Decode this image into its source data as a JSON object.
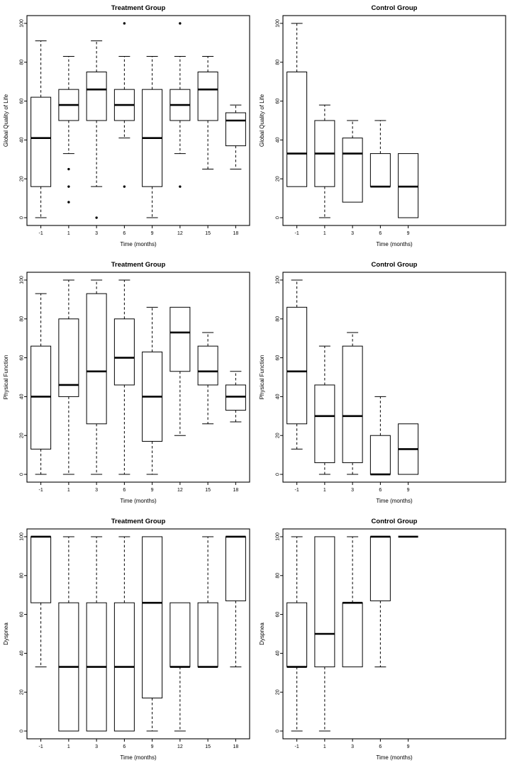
{
  "page": {
    "background": "#ffffff",
    "ink": "#000000"
  },
  "chart_data": [
    {
      "type": "box",
      "title": "Treatment Group",
      "ylabel": "Global Quality of Life",
      "xlabel": "Time (months)",
      "ylim": [
        0,
        100
      ],
      "yticks": [
        0,
        20,
        40,
        60,
        80,
        100
      ],
      "slots": 8,
      "categories": [
        "-1",
        "1",
        "3",
        "6",
        "9",
        "12",
        "15",
        "18"
      ],
      "boxes": [
        {
          "x": "-1",
          "low": 0,
          "q1": 16,
          "med": 41,
          "q3": 62,
          "high": 91,
          "outliers": []
        },
        {
          "x": "1",
          "low": 33,
          "q1": 50,
          "med": 58,
          "q3": 66,
          "high": 83,
          "outliers": [
            25,
            16,
            8
          ]
        },
        {
          "x": "3",
          "low": 16,
          "q1": 50,
          "med": 66,
          "q3": 75,
          "high": 91,
          "outliers": [
            0
          ]
        },
        {
          "x": "6",
          "low": 41,
          "q1": 50,
          "med": 58,
          "q3": 66,
          "high": 83,
          "outliers": [
            100,
            16
          ]
        },
        {
          "x": "9",
          "low": 0,
          "q1": 16,
          "med": 41,
          "q3": 66,
          "high": 83,
          "outliers": []
        },
        {
          "x": "12",
          "low": 33,
          "q1": 50,
          "med": 58,
          "q3": 66,
          "high": 83,
          "outliers": [
            100,
            16
          ]
        },
        {
          "x": "15",
          "low": 25,
          "q1": 50,
          "med": 66,
          "q3": 75,
          "high": 83,
          "outliers": []
        },
        {
          "x": "18",
          "low": 25,
          "q1": 37,
          "med": 50,
          "q3": 54,
          "high": 58,
          "outliers": []
        }
      ]
    },
    {
      "type": "box",
      "title": "Control Group",
      "ylabel": "Global Quality of Life",
      "xlabel": "Time (months)",
      "ylim": [
        0,
        100
      ],
      "yticks": [
        0,
        20,
        40,
        60,
        80,
        100
      ],
      "slots": 8,
      "categories": [
        "-1",
        "1",
        "3",
        "6",
        "9"
      ],
      "boxes": [
        {
          "x": "-1",
          "low": 16,
          "q1": 16,
          "med": 33,
          "q3": 75,
          "high": 100,
          "outliers": []
        },
        {
          "x": "1",
          "low": 0,
          "q1": 16,
          "med": 33,
          "q3": 50,
          "high": 58,
          "outliers": []
        },
        {
          "x": "3",
          "low": 8,
          "q1": 8,
          "med": 33,
          "q3": 41,
          "high": 50,
          "outliers": []
        },
        {
          "x": "6",
          "low": 16,
          "q1": 16,
          "med": 16,
          "q3": 33,
          "high": 50,
          "outliers": []
        },
        {
          "x": "9",
          "low": 0,
          "q1": 0,
          "med": 16,
          "q3": 33,
          "high": 33,
          "outliers": []
        }
      ]
    },
    {
      "type": "box",
      "title": "Treatment Group",
      "ylabel": "Physical Function",
      "xlabel": "Time (months)",
      "ylim": [
        0,
        100
      ],
      "yticks": [
        0,
        20,
        40,
        60,
        80,
        100
      ],
      "slots": 8,
      "categories": [
        "-1",
        "1",
        "3",
        "6",
        "9",
        "12",
        "15",
        "18"
      ],
      "boxes": [
        {
          "x": "-1",
          "low": 0,
          "q1": 13,
          "med": 40,
          "q3": 66,
          "high": 93,
          "outliers": []
        },
        {
          "x": "1",
          "low": 0,
          "q1": 40,
          "med": 46,
          "q3": 80,
          "high": 100,
          "outliers": []
        },
        {
          "x": "3",
          "low": 0,
          "q1": 26,
          "med": 53,
          "q3": 93,
          "high": 100,
          "outliers": []
        },
        {
          "x": "6",
          "low": 0,
          "q1": 46,
          "med": 60,
          "q3": 80,
          "high": 100,
          "outliers": []
        },
        {
          "x": "9",
          "low": 0,
          "q1": 17,
          "med": 40,
          "q3": 63,
          "high": 86,
          "outliers": []
        },
        {
          "x": "12",
          "low": 20,
          "q1": 53,
          "med": 73,
          "q3": 86,
          "high": 86,
          "outliers": []
        },
        {
          "x": "15",
          "low": 26,
          "q1": 46,
          "med": 53,
          "q3": 66,
          "high": 73,
          "outliers": []
        },
        {
          "x": "18",
          "low": 27,
          "q1": 33,
          "med": 40,
          "q3": 46,
          "high": 53,
          "outliers": []
        }
      ]
    },
    {
      "type": "box",
      "title": "Control Group",
      "ylabel": "Physical Function",
      "xlabel": "Time (months)",
      "ylim": [
        0,
        100
      ],
      "yticks": [
        0,
        20,
        40,
        60,
        80,
        100
      ],
      "slots": 8,
      "categories": [
        "-1",
        "1",
        "3",
        "6",
        "9"
      ],
      "boxes": [
        {
          "x": "-1",
          "low": 13,
          "q1": 26,
          "med": 53,
          "q3": 86,
          "high": 100,
          "outliers": []
        },
        {
          "x": "1",
          "low": 0,
          "q1": 6,
          "med": 30,
          "q3": 46,
          "high": 66,
          "outliers": []
        },
        {
          "x": "3",
          "low": 0,
          "q1": 6,
          "med": 30,
          "q3": 66,
          "high": 73,
          "outliers": []
        },
        {
          "x": "6",
          "low": 0,
          "q1": 0,
          "med": 0,
          "q3": 20,
          "high": 40,
          "outliers": []
        },
        {
          "x": "9",
          "low": 0,
          "q1": 0,
          "med": 13,
          "q3": 26,
          "high": 26,
          "outliers": []
        }
      ]
    },
    {
      "type": "box",
      "title": "Treatment Group",
      "ylabel": "Dyspnea",
      "xlabel": "Time (months)",
      "ylim": [
        0,
        100
      ],
      "yticks": [
        0,
        20,
        40,
        60,
        80,
        100
      ],
      "slots": 8,
      "categories": [
        "-1",
        "1",
        "3",
        "6",
        "9",
        "12",
        "15",
        "18"
      ],
      "boxes": [
        {
          "x": "-1",
          "low": 33,
          "q1": 66,
          "med": 100,
          "q3": 100,
          "high": 100,
          "outliers": []
        },
        {
          "x": "1",
          "low": 0,
          "q1": 0,
          "med": 33,
          "q3": 66,
          "high": 100,
          "outliers": []
        },
        {
          "x": "3",
          "low": 0,
          "q1": 0,
          "med": 33,
          "q3": 66,
          "high": 100,
          "outliers": []
        },
        {
          "x": "6",
          "low": 0,
          "q1": 0,
          "med": 33,
          "q3": 66,
          "high": 100,
          "outliers": []
        },
        {
          "x": "9",
          "low": 0,
          "q1": 17,
          "med": 66,
          "q3": 100,
          "high": 100,
          "outliers": []
        },
        {
          "x": "12",
          "low": 0,
          "q1": 33,
          "med": 33,
          "q3": 66,
          "high": 66,
          "outliers": []
        },
        {
          "x": "15",
          "low": 33,
          "q1": 33,
          "med": 33,
          "q3": 66,
          "high": 100,
          "outliers": []
        },
        {
          "x": "18",
          "low": 33,
          "q1": 67,
          "med": 100,
          "q3": 100,
          "high": 100,
          "outliers": []
        }
      ]
    },
    {
      "type": "box",
      "title": "Control Group",
      "ylabel": "Dyspnea",
      "xlabel": "Time (months)",
      "ylim": [
        0,
        100
      ],
      "yticks": [
        0,
        20,
        40,
        60,
        80,
        100
      ],
      "slots": 8,
      "categories": [
        "-1",
        "1",
        "3",
        "6",
        "9"
      ],
      "boxes": [
        {
          "x": "-1",
          "low": 0,
          "q1": 33,
          "med": 33,
          "q3": 66,
          "high": 100,
          "outliers": []
        },
        {
          "x": "1",
          "low": 0,
          "q1": 33,
          "med": 50,
          "q3": 100,
          "high": 100,
          "outliers": []
        },
        {
          "x": "3",
          "low": 33,
          "q1": 33,
          "med": 66,
          "q3": 66,
          "high": 100,
          "outliers": []
        },
        {
          "x": "6",
          "low": 33,
          "q1": 67,
          "med": 100,
          "q3": 100,
          "high": 100,
          "outliers": []
        },
        {
          "x": "9",
          "low": 100,
          "q1": 100,
          "med": 100,
          "q3": 100,
          "high": 100,
          "outliers": []
        }
      ]
    }
  ]
}
